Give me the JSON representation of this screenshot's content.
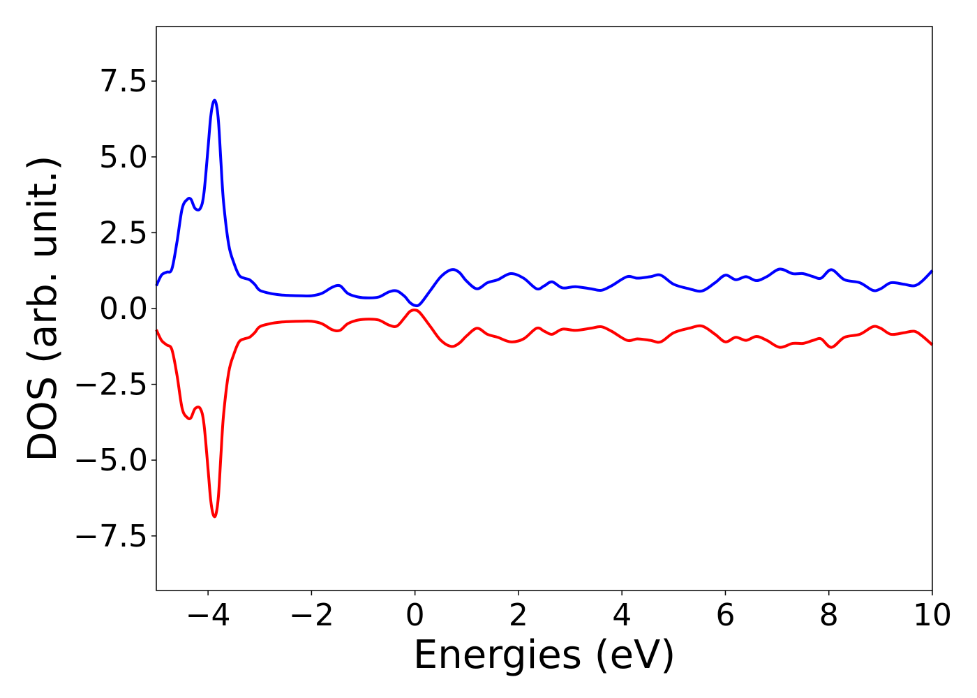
{
  "chart_data": {
    "type": "line",
    "title": "",
    "xlabel": "Energies (eV)",
    "ylabel": "DOS (arb. unit.)",
    "xlim": [
      -5,
      10
    ],
    "ylim": [
      -9.3,
      9.3
    ],
    "xticks": [
      -4,
      -2,
      0,
      2,
      4,
      6,
      8,
      10
    ],
    "xtick_labels": [
      "−4",
      "−2",
      "0",
      "2",
      "4",
      "6",
      "8",
      "10"
    ],
    "yticks": [
      -7.5,
      -5.0,
      -2.5,
      0.0,
      2.5,
      5.0,
      7.5
    ],
    "ytick_labels": [
      "−7.5",
      "−5.0",
      "−2.5",
      "0.0",
      "2.5",
      "5.0",
      "7.5"
    ],
    "grid": false,
    "legend": "none",
    "series": [
      {
        "color": "#0000ff",
        "x": [
          -5.0,
          -4.9,
          -4.8,
          -4.7,
          -4.6,
          -4.5,
          -4.4,
          -4.33,
          -4.25,
          -4.15,
          -4.08,
          -4.0,
          -3.95,
          -3.9,
          -3.85,
          -3.8,
          -3.75,
          -3.7,
          -3.6,
          -3.5,
          -3.4,
          -3.3,
          -3.2,
          -3.1,
          -3.0,
          -2.8,
          -2.6,
          -2.4,
          -2.2,
          -2.0,
          -1.8,
          -1.6,
          -1.45,
          -1.3,
          -1.1,
          -0.9,
          -0.7,
          -0.5,
          -0.35,
          -0.2,
          -0.1,
          0.0,
          0.1,
          0.3,
          0.5,
          0.7,
          0.85,
          1.0,
          1.2,
          1.4,
          1.6,
          1.85,
          2.1,
          2.35,
          2.5,
          2.65,
          2.85,
          3.1,
          3.4,
          3.6,
          3.8,
          4.1,
          4.3,
          4.55,
          4.75,
          5.0,
          5.3,
          5.55,
          5.8,
          6.0,
          6.2,
          6.4,
          6.6,
          6.8,
          7.05,
          7.3,
          7.5,
          7.7,
          7.85,
          8.05,
          8.3,
          8.6,
          8.85,
          9.0,
          9.2,
          9.45,
          9.65,
          9.8,
          10.0
        ],
        "y": [
          0.75,
          1.1,
          1.2,
          1.3,
          2.2,
          3.3,
          3.6,
          3.6,
          3.3,
          3.3,
          3.8,
          5.3,
          6.3,
          6.8,
          6.8,
          6.2,
          4.8,
          3.5,
          2.1,
          1.5,
          1.1,
          1.0,
          0.95,
          0.8,
          0.6,
          0.5,
          0.45,
          0.43,
          0.42,
          0.42,
          0.5,
          0.7,
          0.75,
          0.5,
          0.38,
          0.35,
          0.38,
          0.55,
          0.58,
          0.4,
          0.2,
          0.1,
          0.15,
          0.6,
          1.05,
          1.28,
          1.2,
          0.9,
          0.65,
          0.85,
          0.95,
          1.15,
          1.0,
          0.65,
          0.75,
          0.88,
          0.68,
          0.72,
          0.65,
          0.6,
          0.75,
          1.05,
          1.0,
          1.05,
          1.1,
          0.8,
          0.65,
          0.58,
          0.85,
          1.1,
          0.95,
          1.05,
          0.92,
          1.05,
          1.3,
          1.15,
          1.15,
          1.05,
          1.0,
          1.28,
          0.95,
          0.85,
          0.6,
          0.65,
          0.85,
          0.8,
          0.75,
          0.9,
          1.25
        ]
      },
      {
        "color": "#ff0000",
        "x": [
          -5.0,
          -4.9,
          -4.8,
          -4.7,
          -4.6,
          -4.5,
          -4.4,
          -4.33,
          -4.25,
          -4.15,
          -4.08,
          -4.0,
          -3.95,
          -3.9,
          -3.85,
          -3.8,
          -3.75,
          -3.7,
          -3.6,
          -3.5,
          -3.4,
          -3.3,
          -3.2,
          -3.1,
          -3.0,
          -2.8,
          -2.6,
          -2.4,
          -2.2,
          -2.0,
          -1.8,
          -1.6,
          -1.45,
          -1.3,
          -1.1,
          -0.9,
          -0.7,
          -0.5,
          -0.35,
          -0.2,
          -0.1,
          0.0,
          0.1,
          0.3,
          0.5,
          0.7,
          0.85,
          1.0,
          1.2,
          1.4,
          1.6,
          1.85,
          2.1,
          2.35,
          2.5,
          2.65,
          2.85,
          3.1,
          3.4,
          3.6,
          3.8,
          4.1,
          4.3,
          4.55,
          4.75,
          5.0,
          5.3,
          5.55,
          5.8,
          6.0,
          6.2,
          6.4,
          6.6,
          6.8,
          7.05,
          7.3,
          7.5,
          7.7,
          7.85,
          8.05,
          8.3,
          8.6,
          8.85,
          9.0,
          9.2,
          9.45,
          9.65,
          9.8,
          10.0
        ],
        "y": [
          -0.7,
          -1.05,
          -1.2,
          -1.35,
          -2.2,
          -3.3,
          -3.6,
          -3.6,
          -3.3,
          -3.3,
          -3.8,
          -5.3,
          -6.3,
          -6.8,
          -6.8,
          -6.2,
          -4.8,
          -3.5,
          -2.1,
          -1.5,
          -1.1,
          -1.0,
          -0.95,
          -0.8,
          -0.6,
          -0.5,
          -0.45,
          -0.43,
          -0.42,
          -0.42,
          -0.5,
          -0.7,
          -0.72,
          -0.5,
          -0.38,
          -0.35,
          -0.38,
          -0.55,
          -0.58,
          -0.3,
          -0.1,
          -0.05,
          -0.15,
          -0.6,
          -1.05,
          -1.25,
          -1.15,
          -0.9,
          -0.65,
          -0.85,
          -0.95,
          -1.1,
          -1.0,
          -0.65,
          -0.75,
          -0.85,
          -0.68,
          -0.72,
          -0.65,
          -0.6,
          -0.75,
          -1.05,
          -1.0,
          -1.05,
          -1.1,
          -0.8,
          -0.65,
          -0.58,
          -0.85,
          -1.1,
          -0.95,
          -1.05,
          -0.92,
          -1.05,
          -1.28,
          -1.15,
          -1.15,
          -1.05,
          -1.0,
          -1.28,
          -0.95,
          -0.85,
          -0.6,
          -0.65,
          -0.85,
          -0.8,
          -0.75,
          -0.9,
          -1.2
        ]
      }
    ]
  }
}
